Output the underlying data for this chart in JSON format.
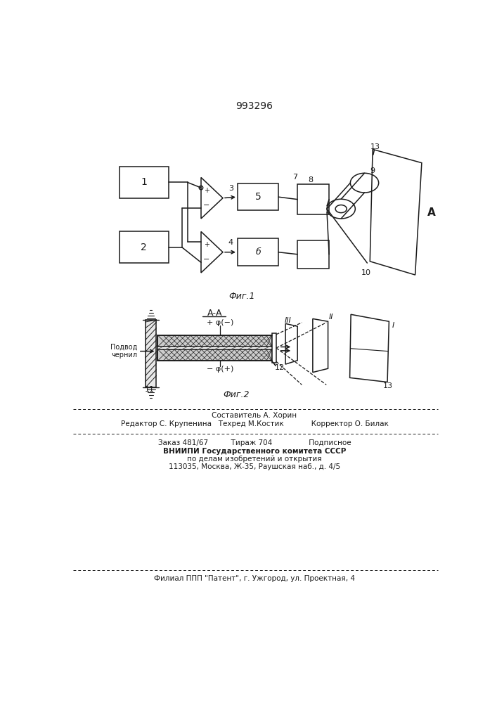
{
  "patent_number": "993296",
  "fig1_label": "Фиг.1",
  "fig2_label": "Фиг.2",
  "aa_label": "А-А",
  "A_label": "А",
  "bg_color": "#ffffff",
  "line_color": "#1a1a1a",
  "footer_line1": "Составитель А. Хорин",
  "footer_line2": "Редактор С. Крупенина   Техред М.Костик            Корректор О. Билак",
  "footer_line3": "Заказ 481/67          Тираж 704                Подписное",
  "footer_line4": "ВНИИПИ Государственного комитета СССР",
  "footer_line5": "по делам изобретений и открытия",
  "footer_line6": "113035, Москва, Ж-35, Раушская наб., д. 4/5",
  "footer_line7": "Филиал ППП \"Патент\", г. Ужгород, ул. Проектная, 4"
}
